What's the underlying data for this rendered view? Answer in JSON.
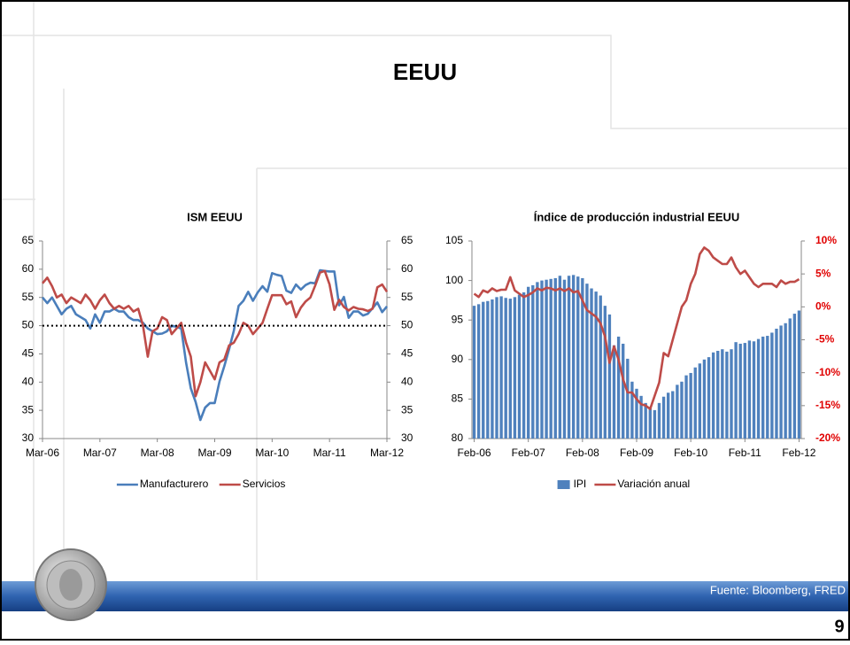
{
  "title": "EEUU",
  "source": "Fuente: Bloomberg, FRED",
  "page_number": "9",
  "chart_data": [
    {
      "type": "line",
      "title": "ISM EEUU",
      "categories": [
        "Mar-06",
        null,
        null,
        null,
        null,
        null,
        null,
        null,
        null,
        null,
        null,
        null,
        "Mar-07",
        null,
        null,
        null,
        null,
        null,
        null,
        null,
        null,
        null,
        null,
        null,
        "Mar-08",
        null,
        null,
        null,
        null,
        null,
        null,
        null,
        null,
        null,
        null,
        null,
        "Mar-09",
        null,
        null,
        null,
        null,
        null,
        null,
        null,
        null,
        null,
        null,
        null,
        "Mar-10",
        null,
        null,
        null,
        null,
        null,
        null,
        null,
        null,
        null,
        null,
        null,
        "Mar-11",
        null,
        null,
        null,
        null,
        null,
        null,
        null,
        null,
        null,
        null,
        null,
        "Mar-12"
      ],
      "series": [
        {
          "name": "Manufacturero",
          "color": "#4a7ebb",
          "values": [
            55,
            54,
            55,
            53.5,
            52,
            53,
            53.5,
            52,
            51.5,
            51,
            49.5,
            52,
            50.5,
            52.5,
            52.5,
            53,
            52.5,
            52.5,
            51.5,
            51,
            51,
            50.5,
            49.5,
            49,
            48.5,
            48.6,
            49,
            50,
            49.8,
            49.5,
            43.5,
            38.9,
            36.5,
            33.3,
            35.5,
            36.3,
            36.3,
            40.1,
            42.8,
            45.8,
            49.1,
            53.5,
            54.4,
            56,
            54.4,
            55.9,
            57,
            56,
            59.3,
            59,
            58.8,
            56.2,
            55.8,
            57.3,
            56.4,
            57.2,
            57.6,
            57.5,
            59.8,
            59.7,
            59.6,
            59.6,
            53.6,
            55.1,
            51.4,
            52.5,
            52.5,
            51.8,
            52.1,
            53.1,
            54.1,
            52.4,
            53.4
          ]
        },
        {
          "name": "Servicios",
          "color": "#be4b48",
          "values": [
            57.5,
            58.5,
            57,
            55,
            55.5,
            54,
            55,
            54.5,
            54,
            55.5,
            54.5,
            53,
            54.5,
            55.5,
            54,
            53,
            53.5,
            53,
            53.5,
            52.5,
            53,
            50,
            44.5,
            49,
            49.5,
            51.5,
            51,
            48.5,
            49.5,
            50.5,
            47,
            44.5,
            37.5,
            40,
            43.5,
            42,
            40.5,
            43.5,
            44,
            46.5,
            47,
            48.5,
            50.5,
            50,
            48.5,
            49.5,
            50.5,
            53,
            55.4,
            55.4,
            55.4,
            53.8,
            54.3,
            51.5,
            53.2,
            54.3,
            55,
            57.1,
            59.4,
            59.7,
            57.3,
            52.8,
            54.6,
            53.3,
            52.7,
            53.3,
            53,
            52.9,
            52.6,
            53,
            56.8,
            57.3,
            56
          ]
        }
      ],
      "ylim": [
        30,
        65
      ],
      "yticks": [
        30,
        35,
        40,
        45,
        50,
        55,
        60,
        65
      ],
      "y2lim": [
        30,
        65
      ],
      "y2ticks": [
        30,
        35,
        40,
        45,
        50,
        55,
        60,
        65
      ],
      "reference_line": 50,
      "legend": "bottom"
    },
    {
      "type": "bar",
      "title": "Índice de producción industrial EEUU",
      "categories": [
        "Feb-06",
        null,
        null,
        null,
        null,
        null,
        null,
        null,
        null,
        null,
        null,
        null,
        "Feb-07",
        null,
        null,
        null,
        null,
        null,
        null,
        null,
        null,
        null,
        null,
        null,
        "Feb-08",
        null,
        null,
        null,
        null,
        null,
        null,
        null,
        null,
        null,
        null,
        null,
        "Feb-09",
        null,
        null,
        null,
        null,
        null,
        null,
        null,
        null,
        null,
        null,
        null,
        "Feb-10",
        null,
        null,
        null,
        null,
        null,
        null,
        null,
        null,
        null,
        null,
        null,
        "Feb-11",
        null,
        null,
        null,
        null,
        null,
        null,
        null,
        null,
        null,
        null,
        null,
        "Feb-12"
      ],
      "series": [
        {
          "name": "IPI",
          "type": "bar",
          "color": "#4f81bd",
          "values": [
            96.8,
            97,
            97.3,
            97.4,
            97.6,
            97.9,
            98,
            97.8,
            97.7,
            97.9,
            98.2,
            98.5,
            99.2,
            99.4,
            99.8,
            100,
            100.1,
            100.2,
            100.3,
            100.6,
            100.1,
            100.6,
            100.7,
            100.5,
            100.3,
            99.6,
            99,
            98.6,
            98.1,
            96.8,
            95.7,
            91.8,
            92.9,
            92,
            90.1,
            87.2,
            86.3,
            85.4,
            84.5,
            84,
            83.6,
            84.5,
            85.3,
            85.8,
            86,
            86.8,
            87.2,
            88,
            88.3,
            89,
            89.5,
            90,
            90.3,
            90.9,
            91.1,
            91.3,
            91,
            91.3,
            92.2,
            92,
            92.1,
            92.4,
            92.3,
            92.6,
            92.9,
            93,
            93.4,
            93.9,
            94.3,
            94.6,
            95.2,
            95.8,
            96.2
          ]
        },
        {
          "name": "Variación anual",
          "type": "line",
          "axis": "y2",
          "color": "#be4b48",
          "values": [
            2,
            1.5,
            2.5,
            2.2,
            2.8,
            2.4,
            2.6,
            2.6,
            4.5,
            2.5,
            2,
            1.5,
            1.8,
            2.2,
            2.8,
            2.5,
            2.9,
            2.8,
            2.5,
            2.8,
            2.4,
            2.8,
            2.2,
            2.4,
            1,
            -0.5,
            -1,
            -1.5,
            -2.5,
            -4.5,
            -8.5,
            -6,
            -8,
            -11,
            -13,
            -13,
            -14,
            -14.8,
            -15,
            -15.5,
            -13.5,
            -11.5,
            -7,
            -7.5,
            -5,
            -2.5,
            0,
            1,
            3.5,
            5,
            8,
            9,
            8.5,
            7.5,
            7,
            6.5,
            6.5,
            7.5,
            6,
            5,
            5.5,
            4.5,
            3.5,
            3,
            3.5,
            3.5,
            3.5,
            3,
            4,
            3.5,
            3.8,
            3.8,
            4.2
          ]
        }
      ],
      "ylim": [
        80,
        105
      ],
      "yticks": [
        80,
        85,
        90,
        95,
        100,
        105
      ],
      "y2lim": [
        -20,
        10
      ],
      "y2ticks": [
        {
          "value": -20,
          "label": "-20%"
        },
        {
          "value": -15,
          "label": "-15%"
        },
        {
          "value": -10,
          "label": "-10%"
        },
        {
          "value": -5,
          "label": "-5%"
        },
        {
          "value": 0,
          "label": "0%"
        },
        {
          "value": 5,
          "label": "5%"
        },
        {
          "value": 10,
          "label": "10%"
        }
      ],
      "y2_color": "#e00000",
      "legend": "bottom"
    }
  ]
}
